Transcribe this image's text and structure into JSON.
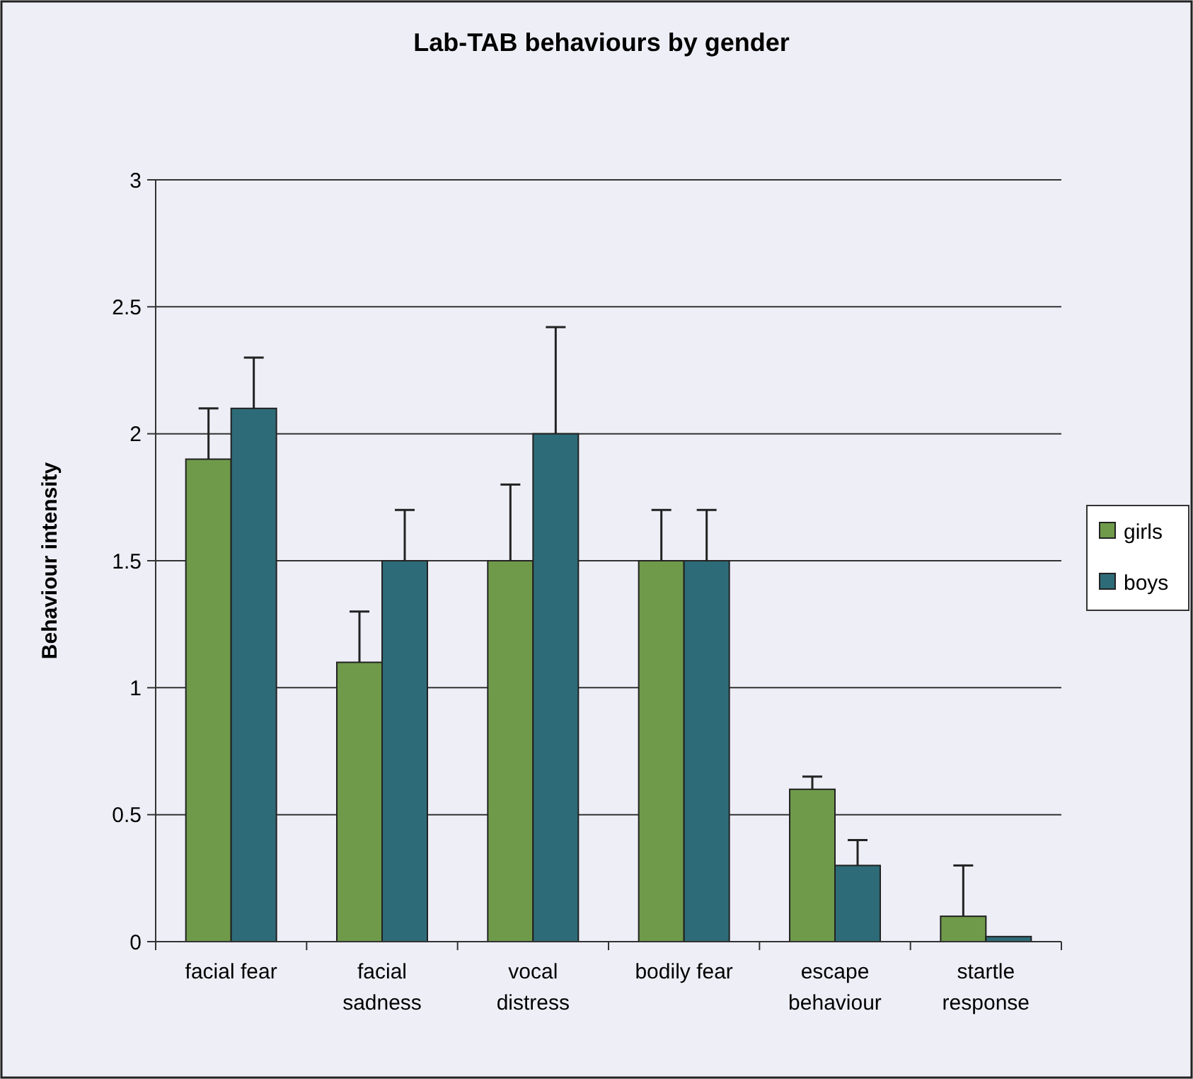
{
  "chart_data": {
    "type": "bar",
    "title": "Lab-TAB behaviours by gender",
    "ylabel": "Behaviour intensity",
    "categories": [
      "facial fear",
      "facial sadness",
      "vocal distress",
      "bodily fear",
      "escape behaviour",
      "startle response"
    ],
    "series": [
      {
        "name": "girls",
        "color": "#6f9a4a",
        "values": [
          1.9,
          1.1,
          1.5,
          1.5,
          0.6,
          0.1
        ],
        "errors": [
          [
            1.9,
            2.1
          ],
          [
            1.1,
            1.3
          ],
          [
            1.5,
            1.8
          ],
          [
            1.5,
            1.7
          ],
          [
            0.6,
            0.65
          ],
          [
            0.1,
            0.3
          ]
        ]
      },
      {
        "name": "boys",
        "color": "#2e6b78",
        "values": [
          2.1,
          1.5,
          2.0,
          1.5,
          0.3,
          0.02
        ],
        "errors": [
          [
            2.1,
            2.3
          ],
          [
            1.5,
            1.7
          ],
          [
            2.0,
            2.42
          ],
          [
            1.5,
            1.7
          ],
          [
            0.3,
            0.4
          ],
          null
        ]
      }
    ],
    "ylim": [
      0,
      3
    ],
    "yticks": [
      0,
      0.5,
      1,
      1.5,
      2,
      2.5,
      3
    ],
    "grid": "y",
    "legend": "right"
  }
}
